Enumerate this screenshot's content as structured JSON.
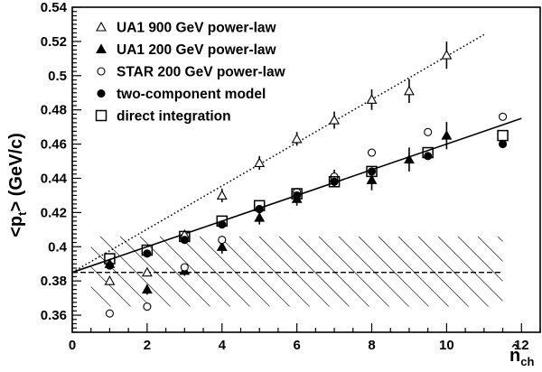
{
  "chart_data": {
    "type": "scatter",
    "title": "",
    "xlabel": {
      "main": "n̂",
      "sub": "ch"
    },
    "ylabel": {
      "pre": "<p",
      "sub": "t",
      "post": "> (GeV/c)"
    },
    "xlim": [
      0,
      12.5
    ],
    "ylim": [
      0.35,
      0.54
    ],
    "x_ticks": [
      0,
      2,
      4,
      6,
      8,
      10,
      12
    ],
    "y_ticks": [
      0.36,
      0.38,
      0.4,
      0.42,
      0.44,
      0.46,
      0.48,
      0.5,
      0.52,
      0.54
    ],
    "y_tick_labels": [
      "0.36",
      "0.38",
      "0.4",
      "0.42",
      "0.44",
      "0.46",
      "0.48",
      "0.5",
      "0.52",
      "0.54"
    ],
    "legend_position": "top-left",
    "series": [
      {
        "name": "UA1  900 GeV power-law",
        "marker": "triangle-open",
        "points": [
          {
            "x": 1,
            "y": 0.38
          },
          {
            "x": 2,
            "y": 0.385
          },
          {
            "x": 3,
            "y": 0.407
          },
          {
            "x": 4,
            "y": 0.43
          },
          {
            "x": 5,
            "y": 0.449
          },
          {
            "x": 6,
            "y": 0.463
          },
          {
            "x": 7,
            "y": 0.474
          },
          {
            "x": 8,
            "y": 0.486
          },
          {
            "x": 9,
            "y": 0.491
          },
          {
            "x": 10,
            "y": 0.512
          }
        ],
        "errors": [
          0,
          0,
          0,
          0.004,
          0.004,
          0.004,
          0.005,
          0.006,
          0.007,
          0.008
        ]
      },
      {
        "name": "UA1  200 GeV power-law",
        "marker": "triangle-filled",
        "points": [
          {
            "x": 1,
            "y": 0.39
          },
          {
            "x": 2,
            "y": 0.375
          },
          {
            "x": 3,
            "y": 0.386
          },
          {
            "x": 4,
            "y": 0.4
          },
          {
            "x": 5,
            "y": 0.417
          },
          {
            "x": 6,
            "y": 0.428
          },
          {
            "x": 7,
            "y": 0.44
          },
          {
            "x": 8,
            "y": 0.439
          },
          {
            "x": 9,
            "y": 0.451
          },
          {
            "x": 10,
            "y": 0.465
          }
        ],
        "errors": [
          0,
          0.003,
          0.003,
          0.004,
          0.004,
          0.004,
          0.005,
          0.006,
          0.007,
          0.008
        ]
      },
      {
        "name": "STAR  200 GeV power-law",
        "marker": "circle-open",
        "points": [
          {
            "x": 1,
            "y": 0.361
          },
          {
            "x": 2,
            "y": 0.365
          },
          {
            "x": 3,
            "y": 0.388
          },
          {
            "x": 4,
            "y": 0.404
          },
          {
            "x": 5,
            "y": 0.422
          },
          {
            "x": 6,
            "y": 0.432
          },
          {
            "x": 7,
            "y": 0.441
          },
          {
            "x": 8,
            "y": 0.455
          },
          {
            "x": 9.5,
            "y": 0.467
          },
          {
            "x": 11.5,
            "y": 0.476
          }
        ]
      },
      {
        "name": "two-component model",
        "marker": "circle-filled",
        "points": [
          {
            "x": 1,
            "y": 0.389
          },
          {
            "x": 2,
            "y": 0.396
          },
          {
            "x": 3,
            "y": 0.404
          },
          {
            "x": 4,
            "y": 0.413
          },
          {
            "x": 5,
            "y": 0.422
          },
          {
            "x": 6,
            "y": 0.43
          },
          {
            "x": 7,
            "y": 0.438
          },
          {
            "x": 8,
            "y": 0.444
          },
          {
            "x": 9.5,
            "y": 0.453
          },
          {
            "x": 11.5,
            "y": 0.46
          }
        ]
      },
      {
        "name": "direct integration",
        "marker": "square-open",
        "points": [
          {
            "x": 1,
            "y": 0.393
          },
          {
            "x": 2,
            "y": 0.398
          },
          {
            "x": 3,
            "y": 0.406
          },
          {
            "x": 4,
            "y": 0.415
          },
          {
            "x": 5,
            "y": 0.424
          },
          {
            "x": 6,
            "y": 0.431
          },
          {
            "x": 7,
            "y": 0.438
          },
          {
            "x": 8,
            "y": 0.444
          },
          {
            "x": 9.5,
            "y": 0.455
          },
          {
            "x": 11.5,
            "y": 0.465
          }
        ]
      }
    ],
    "lines": [
      {
        "style": "dotted",
        "from": [
          0,
          0.385
        ],
        "to": [
          11,
          0.524
        ]
      },
      {
        "style": "solid",
        "from": [
          0,
          0.385
        ],
        "to": [
          12,
          0.475
        ]
      },
      {
        "style": "dashed",
        "from": [
          0,
          0.385
        ],
        "to": [
          11.5,
          0.385
        ]
      }
    ],
    "hatched_band": {
      "x": [
        0.5,
        11.5
      ],
      "y": [
        0.365,
        0.406
      ]
    }
  }
}
